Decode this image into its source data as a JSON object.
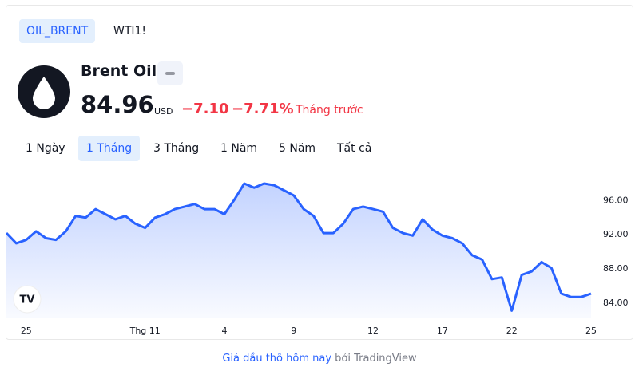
{
  "tabs": [
    "OIL_BRENT",
    "WTI1!"
  ],
  "header": {
    "name": "Brent Oil",
    "price": "84.96",
    "currency": "USD",
    "change": "−7.10",
    "change_percent": "−7.71%",
    "period": "Tháng trước"
  },
  "ranges": [
    "1 Ngày",
    "1 Tháng",
    "3 Tháng",
    "1 Năm",
    "5 Năm",
    "Tất cả"
  ],
  "footer": {
    "link": "Giá dầu thô hôm nay",
    "by": "bởi TradingView"
  },
  "chart_data": {
    "type": "line",
    "color": "#2962ff",
    "categories": [
      null,
      null,
      "25",
      null,
      null,
      null,
      null,
      null,
      null,
      null,
      null,
      null,
      null,
      null,
      "Thg 11",
      null,
      null,
      null,
      null,
      null,
      null,
      null,
      "4",
      null,
      null,
      null,
      null,
      null,
      null,
      "9",
      null,
      null,
      null,
      null,
      null,
      null,
      null,
      "12",
      null,
      null,
      null,
      null,
      null,
      null,
      "17",
      null,
      null,
      null,
      null,
      null,
      null,
      "22",
      null,
      null,
      null,
      null,
      null,
      null,
      null,
      "25"
    ],
    "values": [
      92.2,
      91.0,
      91.4,
      92.4,
      91.6,
      91.4,
      92.4,
      94.2,
      94.0,
      95.0,
      94.4,
      93.8,
      94.2,
      93.3,
      92.8,
      94.0,
      94.4,
      95.0,
      95.3,
      95.6,
      95.0,
      95.0,
      94.4,
      96.1,
      98.0,
      97.5,
      98.0,
      97.8,
      97.2,
      96.6,
      95.0,
      94.2,
      92.2,
      92.2,
      93.3,
      95.0,
      95.3,
      95.0,
      94.7,
      92.8,
      92.2,
      91.9,
      93.8,
      92.6,
      91.9,
      91.6,
      91.0,
      89.6,
      89.1,
      86.8,
      87.0,
      83.1,
      87.3,
      87.7,
      88.8,
      88.1,
      85.1,
      84.7,
      84.7,
      85.1
    ],
    "ylim": [
      82.3,
      99.4
    ],
    "yticks": [
      {
        "value": 84,
        "label": "84.00"
      },
      {
        "value": 88,
        "label": "88.00"
      },
      {
        "value": 92,
        "label": "92.00"
      },
      {
        "value": 96,
        "label": "96.00"
      }
    ]
  }
}
